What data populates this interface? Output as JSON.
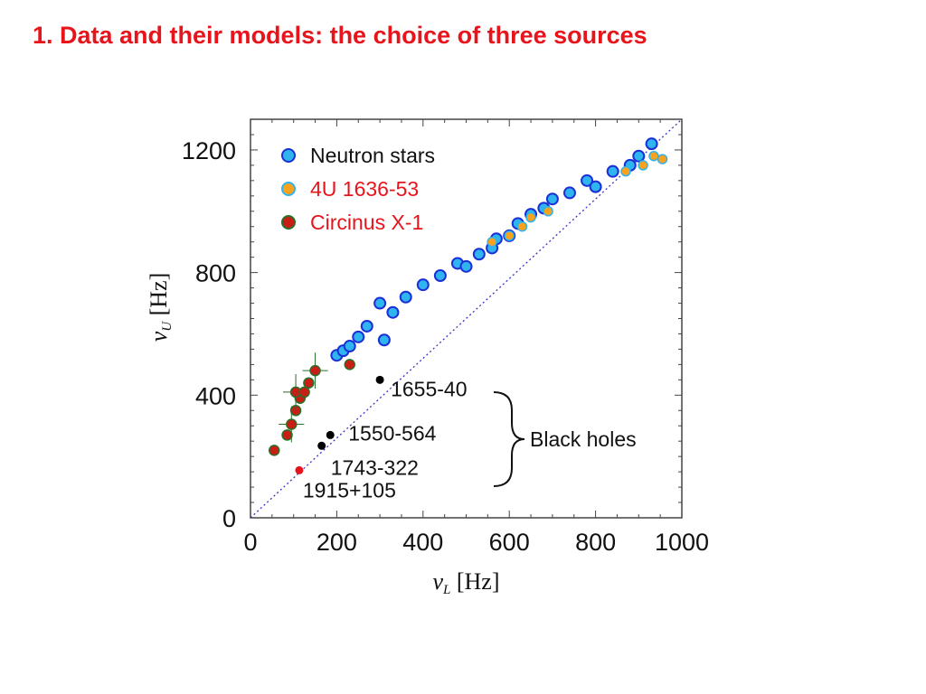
{
  "slide": {
    "title": "1. Data and their models: the choice of three sources"
  },
  "colors": {
    "neutron_fill": "#2fb4f0",
    "neutron_edge": "#1c2fd6",
    "orange_fill": "#f9a21d",
    "circinus_fill": "#c81e16",
    "circinus_edge": "#2a6f2a",
    "black_hole": "#000000",
    "bh_1915": "#e8141c",
    "diagonal": "#3535c8",
    "red_text": "#e8141c"
  },
  "chart_data": {
    "type": "scatter",
    "xlim": [
      0,
      1000
    ],
    "ylim": [
      0,
      1300
    ],
    "xticks": [
      "0",
      "200",
      "400",
      "600",
      "800",
      "1000"
    ],
    "yticks": [
      "0",
      "400",
      "800",
      "1200"
    ],
    "xlabel": {
      "symbol": "ν",
      "subscript": "L",
      "unit": "[Hz]"
    },
    "ylabel": {
      "symbol": "ν",
      "subscript": "U",
      "unit": "[Hz]"
    },
    "grid": false,
    "legend_position": "top-left",
    "reference_line": {
      "style": "dotted",
      "from": [
        0,
        0
      ],
      "to": [
        1000,
        1300
      ]
    },
    "series": [
      {
        "name": "Neutron stars",
        "marker": "circle",
        "points": [
          [
            200,
            530
          ],
          [
            215,
            545
          ],
          [
            230,
            560
          ],
          [
            250,
            590
          ],
          [
            270,
            625
          ],
          [
            300,
            700
          ],
          [
            310,
            580
          ],
          [
            330,
            670
          ],
          [
            360,
            720
          ],
          [
            400,
            760
          ],
          [
            440,
            790
          ],
          [
            480,
            830
          ],
          [
            500,
            820
          ],
          [
            530,
            860
          ],
          [
            560,
            880
          ],
          [
            570,
            910
          ],
          [
            600,
            920
          ],
          [
            620,
            960
          ],
          [
            650,
            990
          ],
          [
            680,
            1010
          ],
          [
            700,
            1040
          ],
          [
            740,
            1060
          ],
          [
            780,
            1100
          ],
          [
            800,
            1080
          ],
          [
            840,
            1130
          ],
          [
            880,
            1150
          ],
          [
            900,
            1180
          ],
          [
            930,
            1220
          ]
        ]
      },
      {
        "name": "4U 1636-53",
        "marker": "circle",
        "points": [
          [
            560,
            900
          ],
          [
            600,
            920
          ],
          [
            630,
            950
          ],
          [
            650,
            980
          ],
          [
            690,
            1000
          ],
          [
            870,
            1130
          ],
          [
            910,
            1150
          ],
          [
            935,
            1180
          ],
          [
            955,
            1170
          ]
        ]
      },
      {
        "name": "Circinus X-1",
        "marker": "circle",
        "points": [
          [
            55,
            220
          ],
          [
            85,
            270
          ],
          [
            95,
            305
          ],
          [
            105,
            350
          ],
          [
            115,
            390
          ],
          [
            105,
            410
          ],
          [
            125,
            410
          ],
          [
            135,
            440
          ],
          [
            150,
            480
          ],
          [
            230,
            500
          ]
        ]
      },
      {
        "name": "Black holes",
        "marker": "circle",
        "points": [
          {
            "label": "1655-40",
            "x": 300,
            "y": 450
          },
          {
            "label": "1550-564",
            "x": 185,
            "y": 270
          },
          {
            "label": "1743-322",
            "x": 165,
            "y": 235
          },
          {
            "label": "1915+105",
            "x": 113,
            "y": 155
          }
        ],
        "group_label": "Black holes"
      }
    ]
  }
}
